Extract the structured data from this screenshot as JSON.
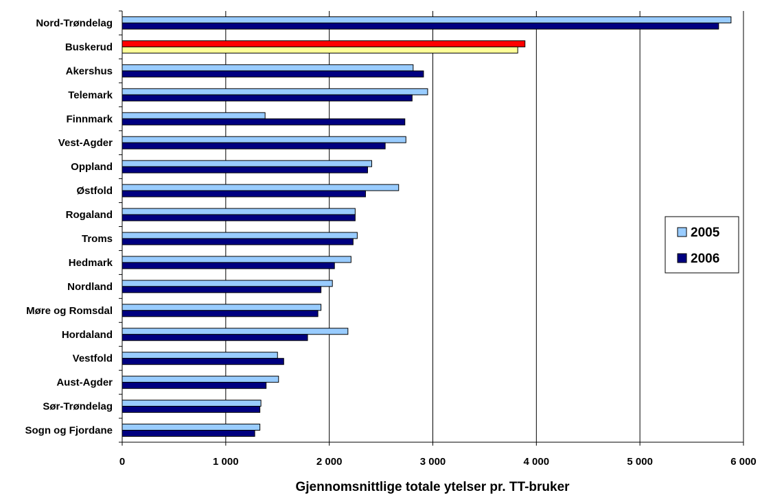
{
  "chart_data": {
    "type": "bar",
    "orientation": "horizontal",
    "xlabel": "Gjennomsnittlige totale ytelser pr. TT-bruker",
    "xlim": [
      0,
      6000
    ],
    "ticks": [
      0,
      1000,
      2000,
      3000,
      4000,
      5000,
      6000
    ],
    "tick_labels": [
      "0",
      "1 000",
      "2 000",
      "3 000",
      "4 000",
      "5 000",
      "6 000"
    ],
    "grid": "vertical",
    "legend_position": "right",
    "categories": [
      "Nord-Trøndelag",
      "Buskerud",
      "Akershus",
      "Telemark",
      "Finnmark",
      "Vest-Agder",
      "Oppland",
      "Østfold",
      "Rogaland",
      "Troms",
      "Hedmark",
      "Nordland",
      "Møre og Romsdal",
      "Hordaland",
      "Vestfold",
      "Aust-Agder",
      "Sør-Trøndelag",
      "Sogn og Fjordane"
    ],
    "series": [
      {
        "name": "2005",
        "color": "#99ccff",
        "values": [
          5880,
          3890,
          2810,
          2950,
          1380,
          2740,
          2410,
          2670,
          2250,
          2270,
          2210,
          2030,
          1920,
          2180,
          1500,
          1510,
          1340,
          1330
        ]
      },
      {
        "name": "2006",
        "color": "#000080",
        "values": [
          5760,
          3820,
          2910,
          2800,
          2730,
          2540,
          2370,
          2350,
          2250,
          2230,
          2050,
          1920,
          1890,
          1790,
          1560,
          1390,
          1330,
          1280
        ]
      }
    ],
    "highlight": {
      "category": "Buskerud",
      "colors": {
        "2005": "#ff0000",
        "2006": "#ffff99"
      }
    }
  }
}
